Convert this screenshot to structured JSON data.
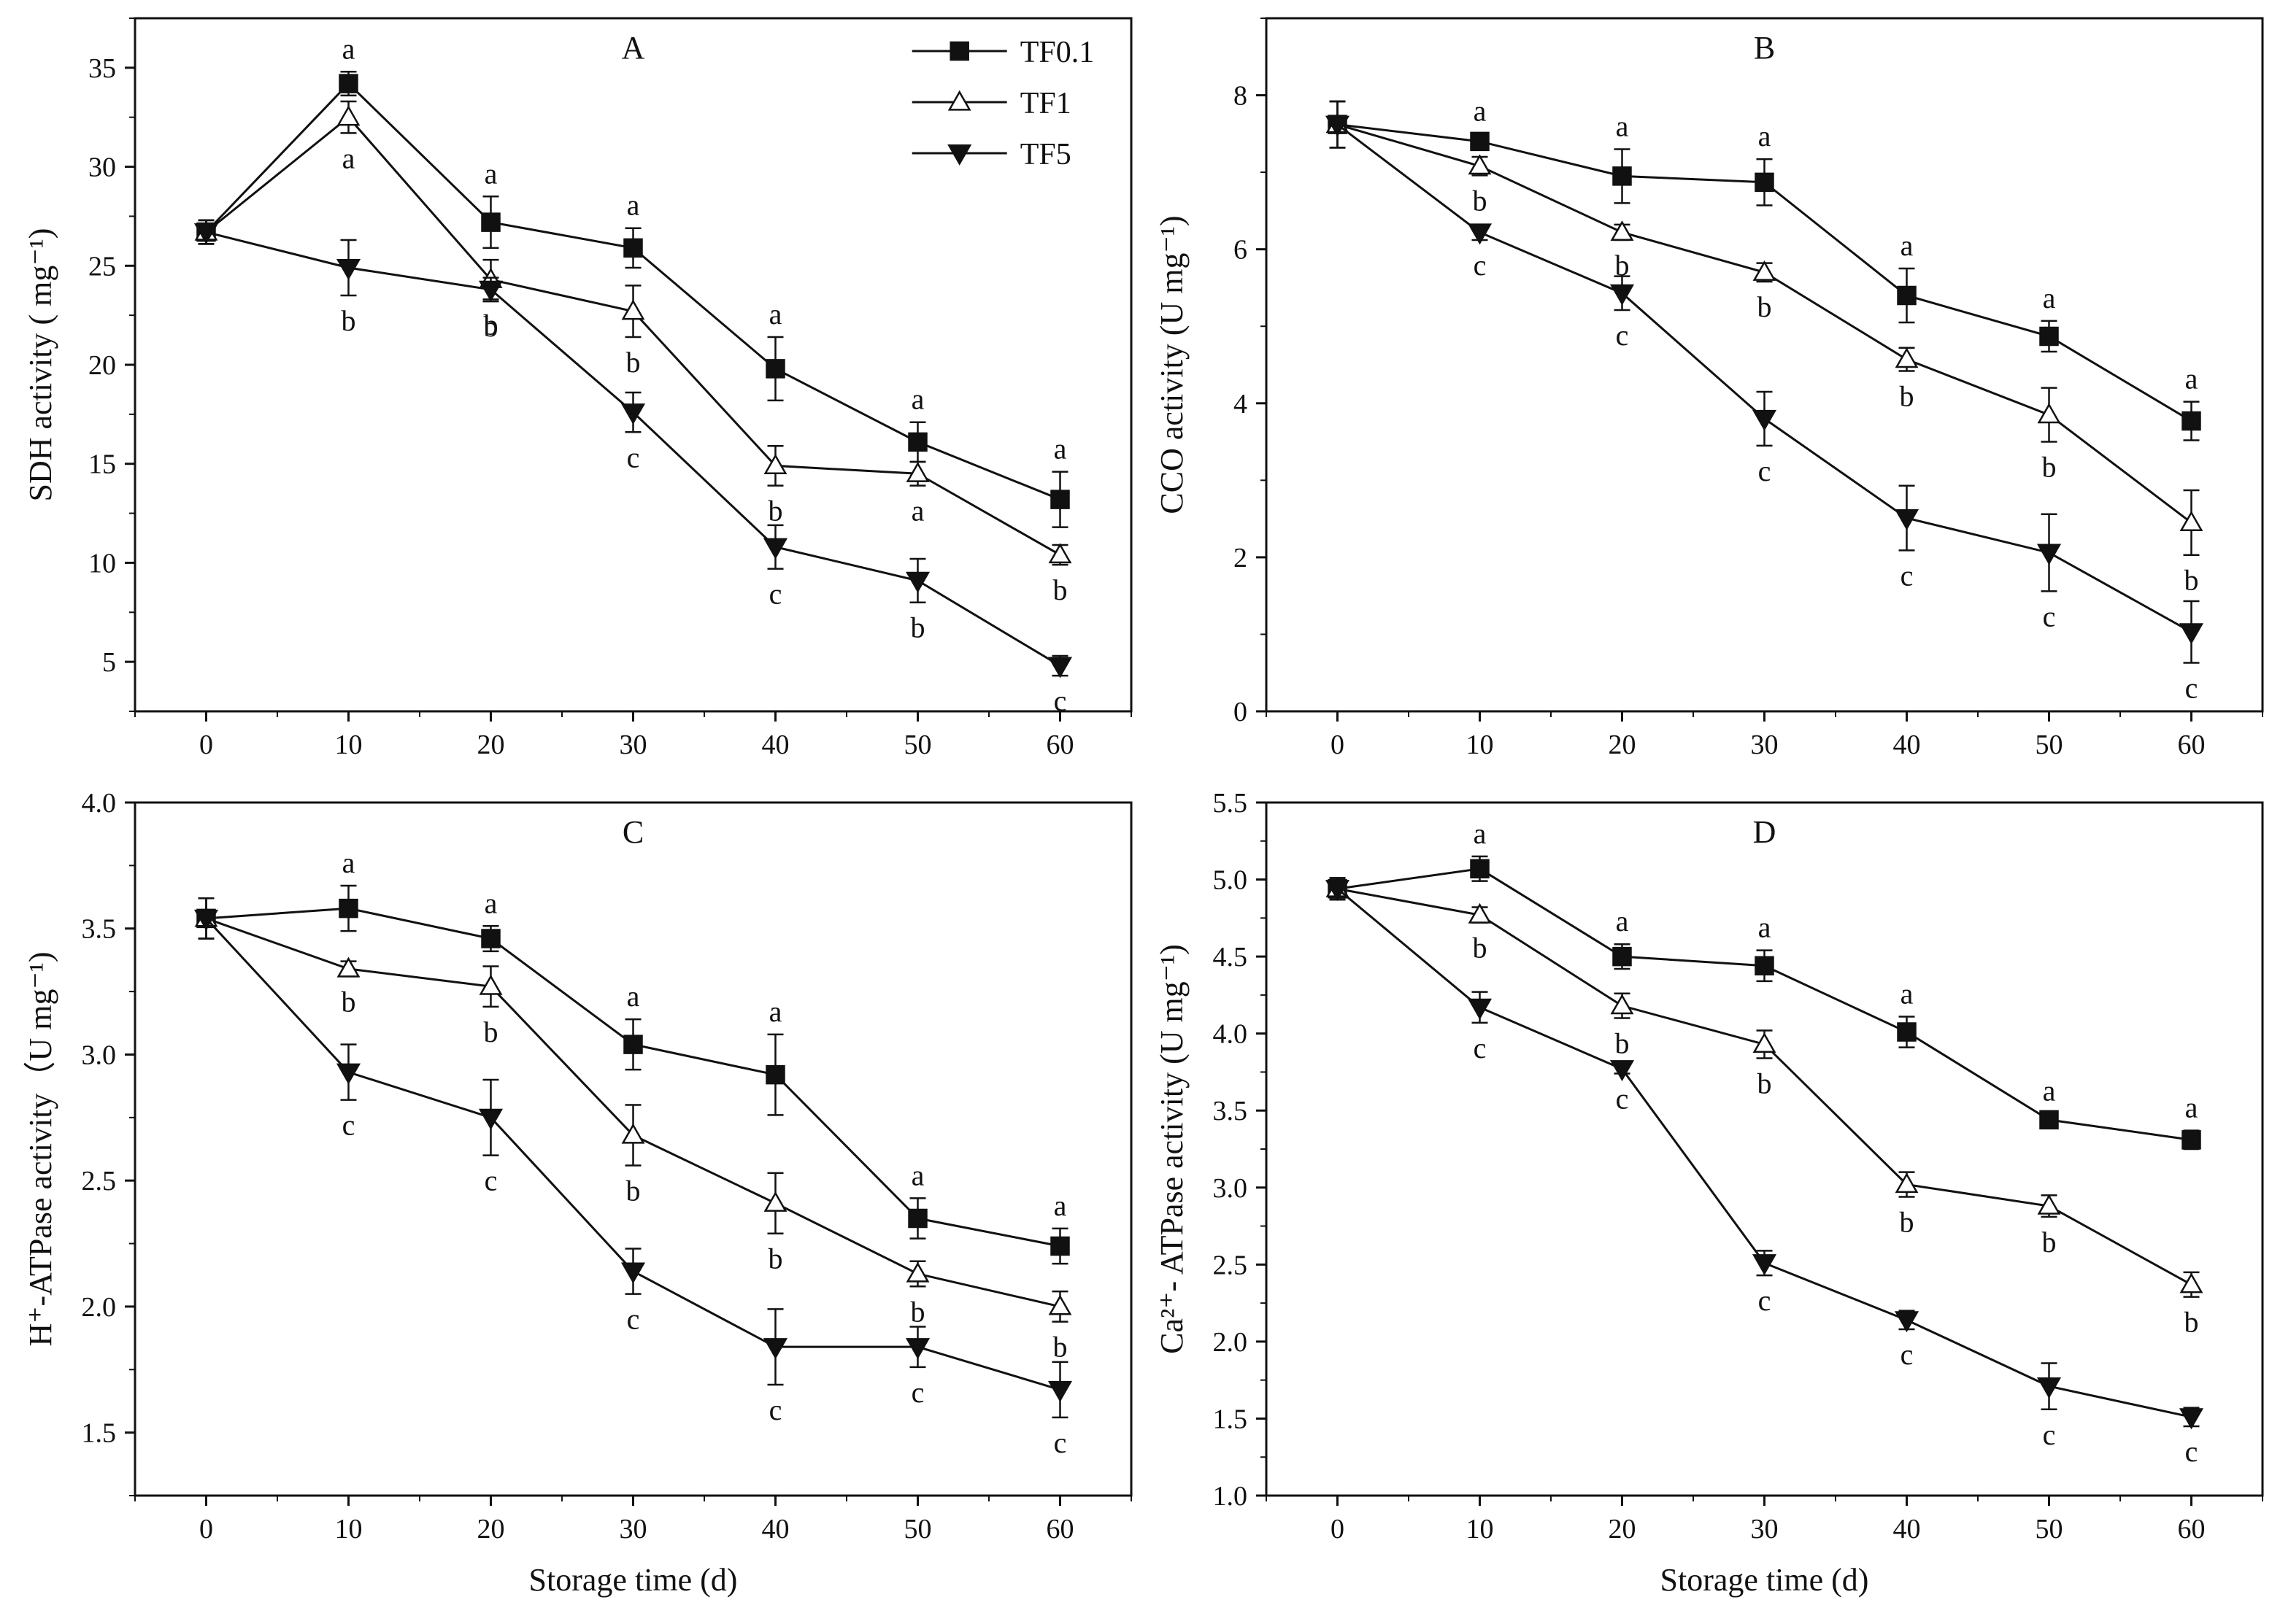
{
  "figure": {
    "shared_xlabel": "Storage time (d)",
    "legend": [
      {
        "name": "TF0.1",
        "marker": "filled-square"
      },
      {
        "name": "TF1",
        "marker": "open-triangle-up"
      },
      {
        "name": "TF5",
        "marker": "filled-triangle-down"
      }
    ],
    "colors": {
      "ink": "#111111",
      "background": "#ffffff",
      "open_marker_fill": "#ffffff"
    }
  },
  "chart_data": [
    {
      "type": "line",
      "panel": "A",
      "title": "A",
      "xlabel": "",
      "ylabel": "SDH activity ( mg⁻¹)",
      "x": [
        0,
        10,
        20,
        30,
        40,
        50,
        60
      ],
      "xlim": [
        -5,
        65
      ],
      "xticks": [
        0,
        10,
        20,
        30,
        40,
        50,
        60
      ],
      "ylim": [
        2.5,
        37.5
      ],
      "yticks": [
        5,
        10,
        15,
        20,
        25,
        30,
        35
      ],
      "series": [
        {
          "name": "TF0.1",
          "marker": "filled-square",
          "values": [
            26.7,
            34.2,
            27.2,
            25.9,
            19.8,
            16.1,
            13.2
          ],
          "errors": [
            0.6,
            0.6,
            1.3,
            1.0,
            1.6,
            1.0,
            1.4
          ],
          "labels": [
            "",
            "a",
            "a",
            "a",
            "a",
            "a",
            "a"
          ]
        },
        {
          "name": "TF1",
          "marker": "open-triangle-up",
          "values": [
            26.7,
            32.5,
            24.3,
            22.7,
            14.9,
            14.5,
            10.4
          ],
          "errors": [
            0.6,
            0.8,
            1.0,
            1.3,
            1.0,
            0.6,
            0.5
          ],
          "labels": [
            "",
            "a",
            "b",
            "b",
            "b",
            "a",
            "b"
          ]
        },
        {
          "name": "TF5",
          "marker": "filled-triangle-down",
          "values": [
            26.7,
            24.9,
            23.8,
            17.6,
            10.8,
            9.1,
            4.8
          ],
          "errors": [
            0.6,
            1.4,
            0.6,
            1.0,
            1.1,
            1.1,
            0.5
          ],
          "labels": [
            "",
            "b",
            "b",
            "c",
            "c",
            "b",
            "c"
          ]
        }
      ]
    },
    {
      "type": "line",
      "panel": "B",
      "title": "B",
      "xlabel": "",
      "ylabel": "CCO activity (U mg⁻¹)",
      "x": [
        0,
        10,
        20,
        30,
        40,
        50,
        60
      ],
      "xlim": [
        -5,
        65
      ],
      "xticks": [
        0,
        10,
        20,
        30,
        40,
        50,
        60
      ],
      "ylim": [
        0,
        9
      ],
      "yticks": [
        0,
        2,
        4,
        6,
        8
      ],
      "series": [
        {
          "name": "TF0.1",
          "marker": "filled-square",
          "values": [
            7.62,
            7.4,
            6.95,
            6.87,
            5.4,
            4.87,
            3.77
          ],
          "errors": [
            0.3,
            0.1,
            0.35,
            0.3,
            0.35,
            0.2,
            0.25
          ],
          "labels": [
            "",
            "a",
            "a",
            "a",
            "a",
            "a",
            "a"
          ]
        },
        {
          "name": "TF1",
          "marker": "open-triangle-up",
          "values": [
            7.62,
            7.08,
            6.22,
            5.7,
            4.57,
            3.85,
            2.45
          ],
          "errors": [
            0.3,
            0.12,
            0.1,
            0.12,
            0.15,
            0.35,
            0.42
          ],
          "labels": [
            "",
            "b",
            "b",
            "b",
            "b",
            "b",
            "b"
          ]
        },
        {
          "name": "TF5",
          "marker": "filled-triangle-down",
          "values": [
            7.62,
            6.22,
            5.43,
            3.8,
            2.51,
            2.06,
            1.03
          ],
          "errors": [
            0.3,
            0.1,
            0.22,
            0.35,
            0.42,
            0.5,
            0.4
          ],
          "labels": [
            "",
            "c",
            "c",
            "c",
            "c",
            "c",
            "c"
          ]
        }
      ]
    },
    {
      "type": "line",
      "panel": "C",
      "title": "C",
      "xlabel": "Storage time (d)",
      "ylabel": "H⁺-ATPase activity（U mg⁻¹)",
      "x": [
        0,
        10,
        20,
        30,
        40,
        50,
        60
      ],
      "xlim": [
        -5,
        65
      ],
      "xticks": [
        0,
        10,
        20,
        30,
        40,
        50,
        60
      ],
      "ylim": [
        1.25,
        4.0
      ],
      "yticks": [
        1.5,
        2.0,
        2.5,
        3.0,
        3.5,
        4.0
      ],
      "series": [
        {
          "name": "TF0.1",
          "marker": "filled-square",
          "values": [
            3.54,
            3.58,
            3.46,
            3.04,
            2.92,
            2.35,
            2.24
          ],
          "errors": [
            0.08,
            0.09,
            0.05,
            0.1,
            0.16,
            0.08,
            0.07
          ],
          "labels": [
            "",
            "a",
            "a",
            "a",
            "a",
            "a",
            "a"
          ]
        },
        {
          "name": "TF1",
          "marker": "open-triangle-up",
          "values": [
            3.54,
            3.34,
            3.27,
            2.68,
            2.41,
            2.13,
            2.0
          ],
          "errors": [
            0.08,
            0.03,
            0.08,
            0.12,
            0.12,
            0.05,
            0.06
          ],
          "labels": [
            "",
            "b",
            "b",
            "b",
            "b",
            "b",
            "b"
          ]
        },
        {
          "name": "TF5",
          "marker": "filled-triangle-down",
          "values": [
            3.54,
            2.93,
            2.75,
            2.14,
            1.84,
            1.84,
            1.67
          ],
          "errors": [
            0.08,
            0.11,
            0.15,
            0.09,
            0.15,
            0.08,
            0.11
          ],
          "labels": [
            "",
            "c",
            "c",
            "c",
            "c",
            "c",
            "c"
          ]
        }
      ]
    },
    {
      "type": "line",
      "panel": "D",
      "title": "D",
      "xlabel": "Storage time (d)",
      "ylabel": "Ca²⁺- ATPase activity (U mg⁻¹)",
      "x": [
        0,
        10,
        20,
        30,
        40,
        50,
        60
      ],
      "xlim": [
        -5,
        65
      ],
      "xticks": [
        0,
        10,
        20,
        30,
        40,
        50,
        60
      ],
      "ylim": [
        1.0,
        5.5
      ],
      "yticks": [
        1.0,
        1.5,
        2.0,
        2.5,
        3.0,
        3.5,
        4.0,
        4.5,
        5.0,
        5.5
      ],
      "series": [
        {
          "name": "TF0.1",
          "marker": "filled-square",
          "values": [
            4.94,
            5.07,
            4.5,
            4.44,
            4.01,
            3.44,
            3.31
          ],
          "errors": [
            0.07,
            0.08,
            0.08,
            0.1,
            0.1,
            0.04,
            0.06
          ],
          "labels": [
            "",
            "a",
            "a",
            "a",
            "a",
            "a",
            "a"
          ]
        },
        {
          "name": "TF1",
          "marker": "open-triangle-up",
          "values": [
            4.94,
            4.77,
            4.18,
            3.93,
            3.02,
            2.88,
            2.37
          ],
          "errors": [
            0.07,
            0.05,
            0.08,
            0.09,
            0.08,
            0.07,
            0.08
          ],
          "labels": [
            "",
            "b",
            "b",
            "b",
            "b",
            "b",
            "b"
          ]
        },
        {
          "name": "TF5",
          "marker": "filled-triangle-down",
          "values": [
            4.94,
            4.17,
            3.77,
            2.51,
            2.14,
            1.71,
            1.51
          ],
          "errors": [
            0.07,
            0.1,
            0.03,
            0.08,
            0.06,
            0.15,
            0.06
          ],
          "labels": [
            "",
            "c",
            "c",
            "c",
            "c",
            "c",
            "c"
          ]
        }
      ]
    }
  ]
}
